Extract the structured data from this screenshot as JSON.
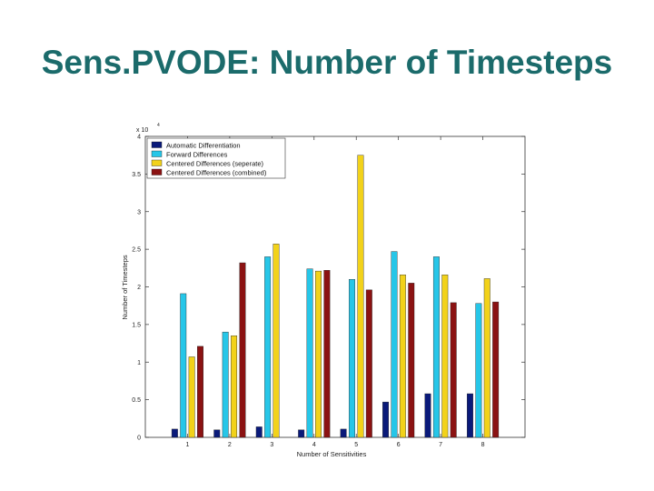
{
  "slide": {
    "title": "Sens.PVODE: Number of Timesteps"
  },
  "chart_data": {
    "type": "bar",
    "title": "",
    "xlabel": "Number of Sensitivities",
    "ylabel": "Number of Timesteps",
    "y_multiplier_label": "x 10",
    "y_multiplier_exponent": "4",
    "ylim": [
      0,
      4
    ],
    "yticks": [
      "0",
      "0.5",
      "1",
      "1.5",
      "2",
      "2.5",
      "3",
      "3.5",
      "4"
    ],
    "categories": [
      "1",
      "2",
      "3",
      "4",
      "5",
      "6",
      "7",
      "8"
    ],
    "legend_position": "top-left",
    "grid": false,
    "series": [
      {
        "name": "Automatic Differentiation",
        "color": "#0a1a7a",
        "values": [
          0.11,
          0.1,
          0.14,
          0.1,
          0.11,
          0.47,
          0.58,
          0.58
        ]
      },
      {
        "name": "Forward Differences",
        "color": "#26c6e8",
        "values": [
          1.91,
          1.4,
          2.4,
          2.24,
          2.1,
          2.47,
          2.4,
          1.78
        ]
      },
      {
        "name": "Centered Differences (seperate)",
        "color": "#f2d21a",
        "values": [
          1.07,
          1.35,
          2.57,
          2.21,
          3.75,
          2.16,
          2.16,
          2.11
        ]
      },
      {
        "name": "Centered Differences (combined)",
        "color": "#8b1212",
        "values": [
          1.21,
          2.32,
          null,
          2.22,
          1.96,
          2.05,
          1.79,
          1.8
        ]
      }
    ]
  }
}
